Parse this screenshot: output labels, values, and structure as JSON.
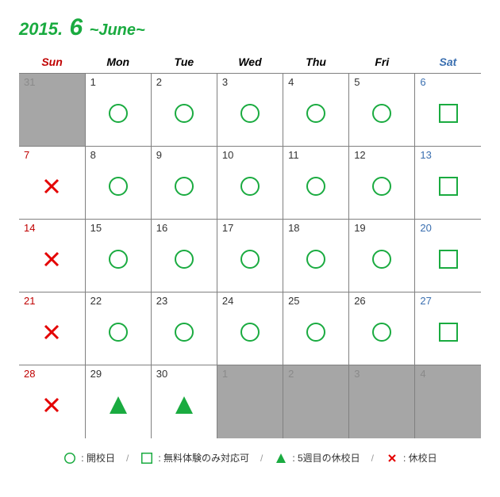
{
  "title": {
    "year": "2015.",
    "month_num": "6",
    "month_name": "~June~"
  },
  "colors": {
    "accent_green": "#1aab40",
    "sun_red": "#c00000",
    "sat_blue": "#3a6fb0",
    "grey_cell": "#a6a6a6",
    "grey_text": "#8a8a8a",
    "cross_red": "#e40000",
    "triangle_green": "#1aab40",
    "circle_green": "#1aab40",
    "square_green": "#1aab40",
    "border": "#808080"
  },
  "headers": [
    "Sun",
    "Mon",
    "Tue",
    "Wed",
    "Thu",
    "Fri",
    "Sat"
  ],
  "weeks": [
    [
      {
        "day": "31",
        "symbol": null,
        "grey": true,
        "dayClass": "grey"
      },
      {
        "day": "1",
        "symbol": "circle",
        "grey": false,
        "dayClass": ""
      },
      {
        "day": "2",
        "symbol": "circle",
        "grey": false,
        "dayClass": ""
      },
      {
        "day": "3",
        "symbol": "circle",
        "grey": false,
        "dayClass": ""
      },
      {
        "day": "4",
        "symbol": "circle",
        "grey": false,
        "dayClass": ""
      },
      {
        "day": "5",
        "symbol": "circle",
        "grey": false,
        "dayClass": ""
      },
      {
        "day": "6",
        "symbol": "square",
        "grey": false,
        "dayClass": "sat"
      }
    ],
    [
      {
        "day": "7",
        "symbol": "cross",
        "grey": false,
        "dayClass": "sun"
      },
      {
        "day": "8",
        "symbol": "circle",
        "grey": false,
        "dayClass": ""
      },
      {
        "day": "9",
        "symbol": "circle",
        "grey": false,
        "dayClass": ""
      },
      {
        "day": "10",
        "symbol": "circle",
        "grey": false,
        "dayClass": ""
      },
      {
        "day": "11",
        "symbol": "circle",
        "grey": false,
        "dayClass": ""
      },
      {
        "day": "12",
        "symbol": "circle",
        "grey": false,
        "dayClass": ""
      },
      {
        "day": "13",
        "symbol": "square",
        "grey": false,
        "dayClass": "sat"
      }
    ],
    [
      {
        "day": "14",
        "symbol": "cross",
        "grey": false,
        "dayClass": "sun"
      },
      {
        "day": "15",
        "symbol": "circle",
        "grey": false,
        "dayClass": ""
      },
      {
        "day": "16",
        "symbol": "circle",
        "grey": false,
        "dayClass": ""
      },
      {
        "day": "17",
        "symbol": "circle",
        "grey": false,
        "dayClass": ""
      },
      {
        "day": "18",
        "symbol": "circle",
        "grey": false,
        "dayClass": ""
      },
      {
        "day": "19",
        "symbol": "circle",
        "grey": false,
        "dayClass": ""
      },
      {
        "day": "20",
        "symbol": "square",
        "grey": false,
        "dayClass": "sat"
      }
    ],
    [
      {
        "day": "21",
        "symbol": "cross",
        "grey": false,
        "dayClass": "sun"
      },
      {
        "day": "22",
        "symbol": "circle",
        "grey": false,
        "dayClass": ""
      },
      {
        "day": "23",
        "symbol": "circle",
        "grey": false,
        "dayClass": ""
      },
      {
        "day": "24",
        "symbol": "circle",
        "grey": false,
        "dayClass": ""
      },
      {
        "day": "25",
        "symbol": "circle",
        "grey": false,
        "dayClass": ""
      },
      {
        "day": "26",
        "symbol": "circle",
        "grey": false,
        "dayClass": ""
      },
      {
        "day": "27",
        "symbol": "square",
        "grey": false,
        "dayClass": "sat"
      }
    ],
    [
      {
        "day": "28",
        "symbol": "cross",
        "grey": false,
        "dayClass": "sun"
      },
      {
        "day": "29",
        "symbol": "triangle",
        "grey": false,
        "dayClass": ""
      },
      {
        "day": "30",
        "symbol": "triangle",
        "grey": false,
        "dayClass": ""
      },
      {
        "day": "1",
        "symbol": null,
        "grey": true,
        "dayClass": "grey"
      },
      {
        "day": "2",
        "symbol": null,
        "grey": true,
        "dayClass": "grey"
      },
      {
        "day": "3",
        "symbol": null,
        "grey": true,
        "dayClass": "grey"
      },
      {
        "day": "4",
        "symbol": null,
        "grey": true,
        "dayClass": "grey"
      }
    ]
  ],
  "legend": {
    "sep": "/",
    "items": [
      {
        "symbol": "circle",
        "label": ": 開校日"
      },
      {
        "symbol": "square",
        "label": ": 無料体験のみ対応可"
      },
      {
        "symbol": "triangle",
        "label": ": 5週目の休校日"
      },
      {
        "symbol": "cross",
        "label": ": 休校日"
      }
    ]
  }
}
